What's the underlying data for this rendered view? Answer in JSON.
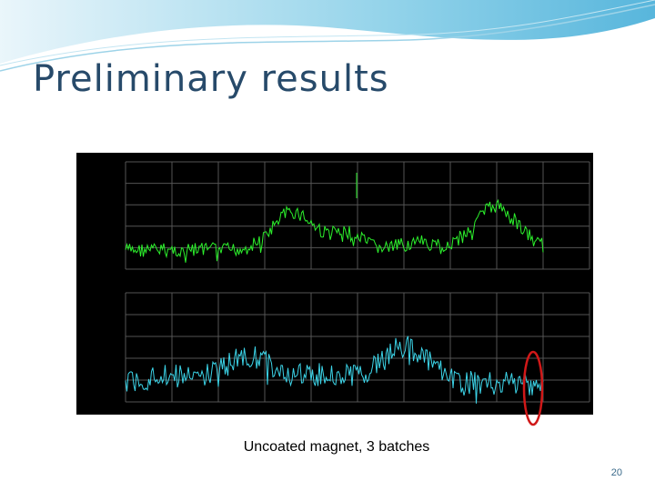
{
  "slide": {
    "title": "Preliminary results",
    "caption": "Uncoated magnet, 3 batches",
    "page_number": "20"
  }
}
